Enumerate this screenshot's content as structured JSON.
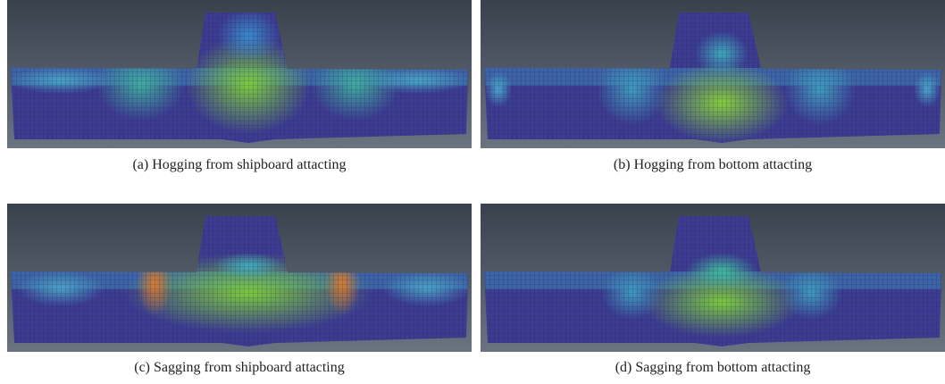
{
  "panels": [
    {
      "caption": "(a) Hogging from shipboard attacting"
    },
    {
      "caption": "(b) Hogging from bottom attacting"
    },
    {
      "caption": "(c) Sagging from shipboard attacting"
    },
    {
      "caption": "(d) Sagging from bottom attacting"
    }
  ]
}
